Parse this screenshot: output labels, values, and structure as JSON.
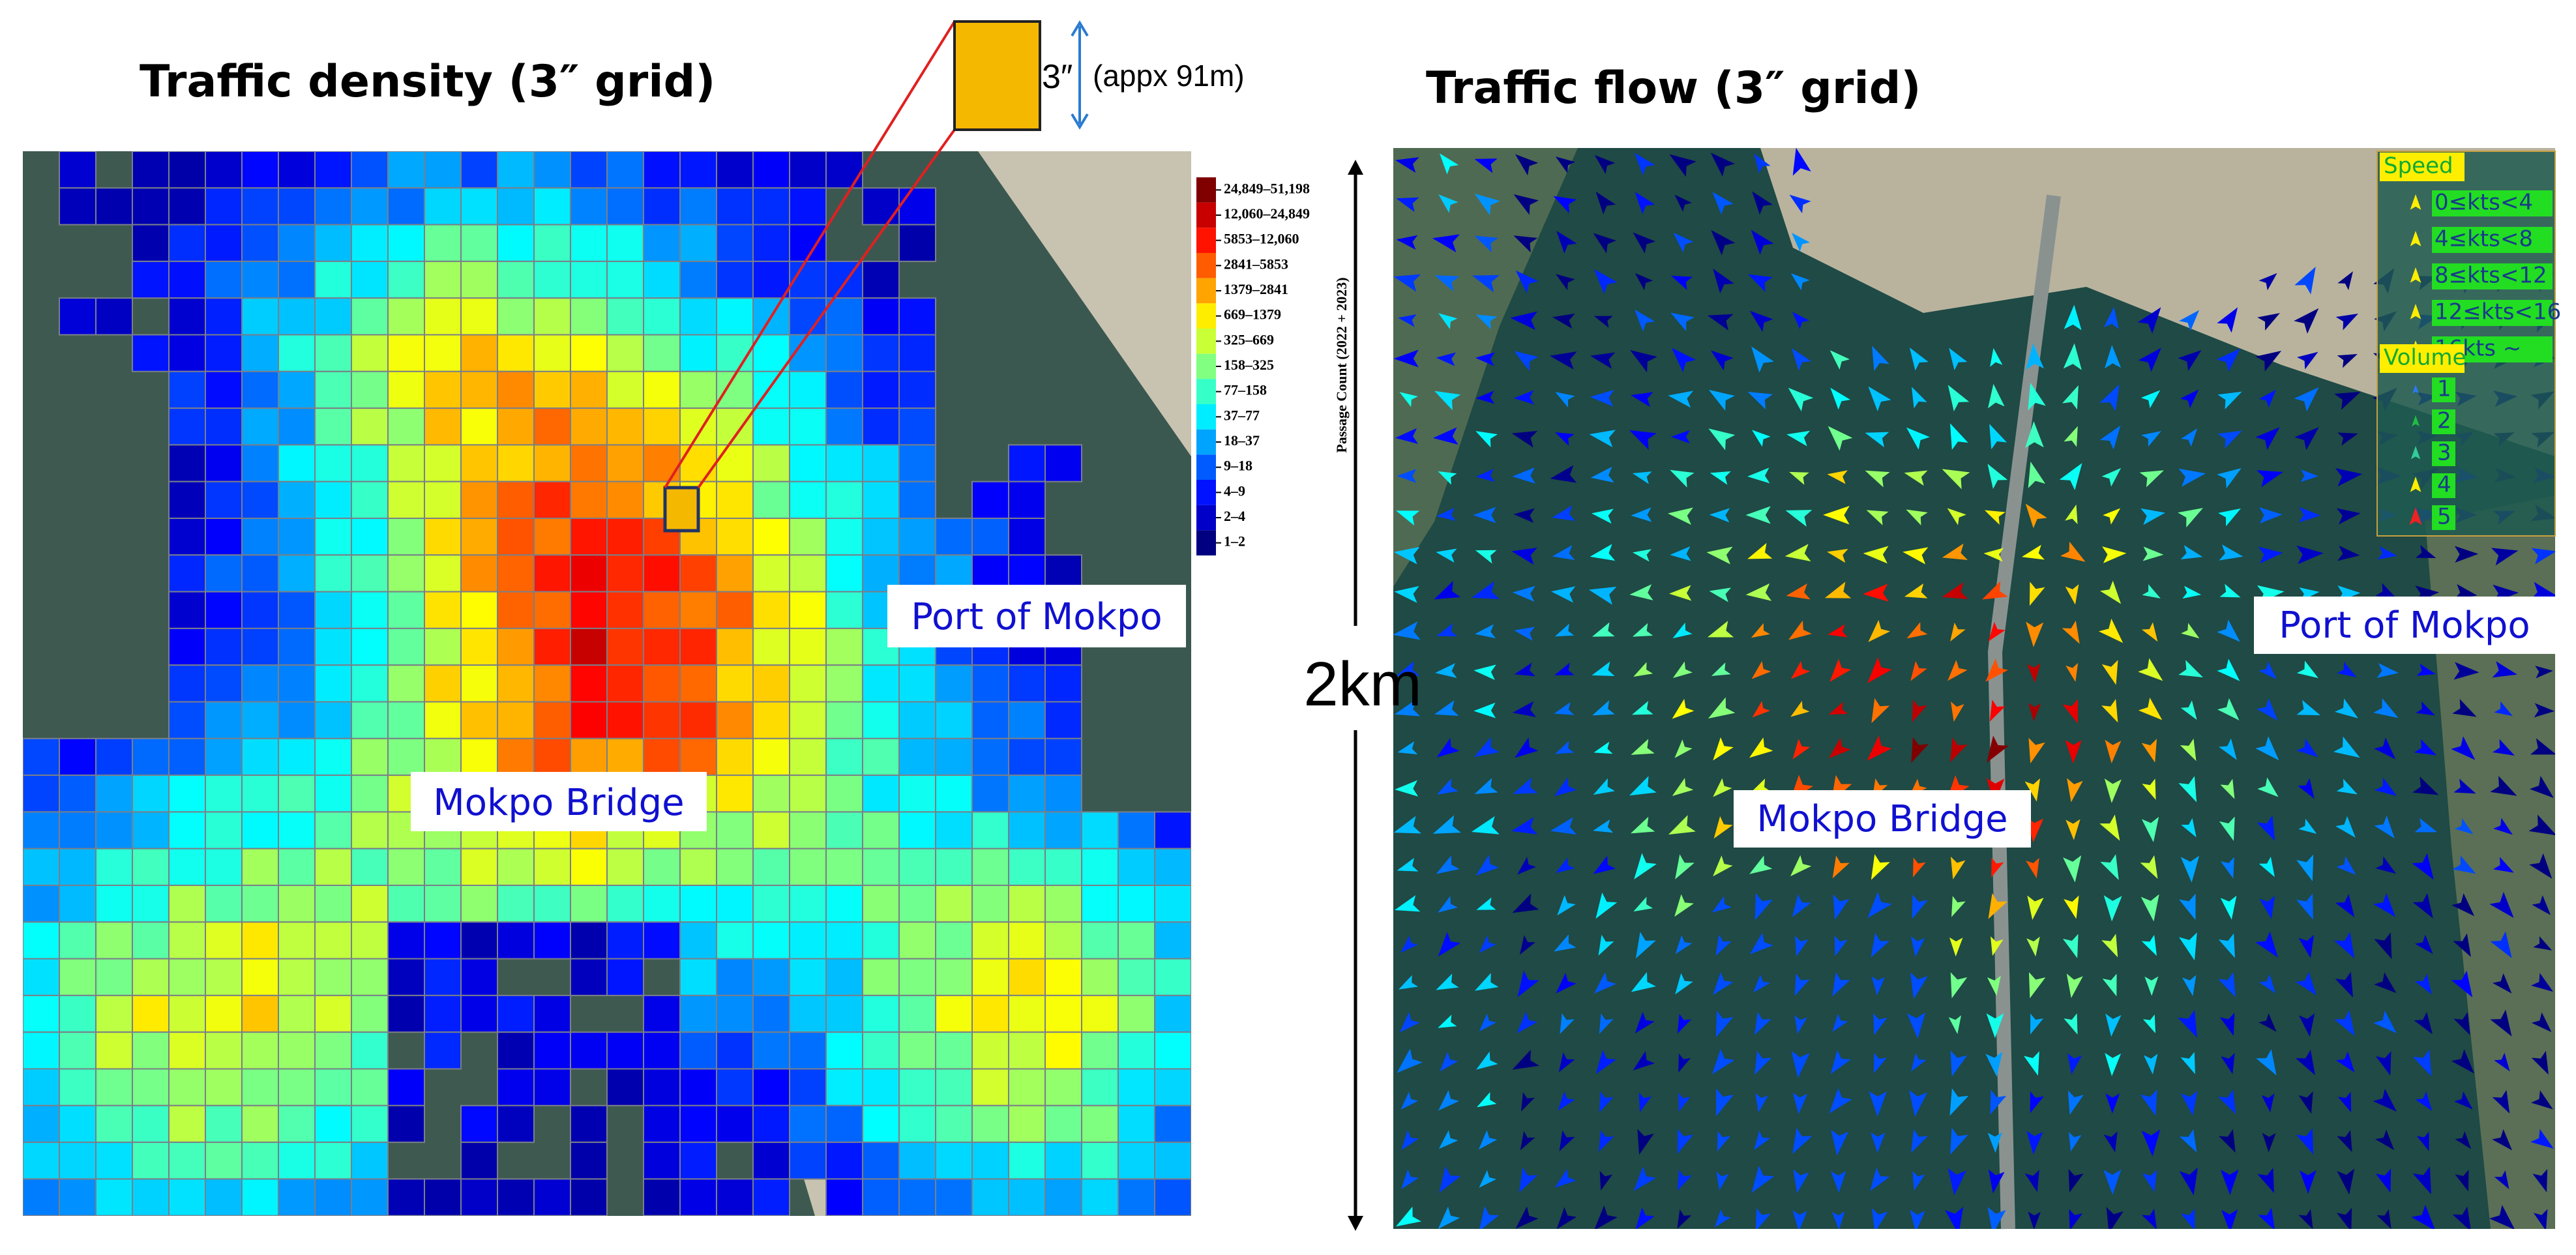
{
  "left_panel": {
    "title": "Traffic density (3″ grid)",
    "colorbar": {
      "label": "Passage Count (2022 + 2023)",
      "bins": [
        "24,849–51,198",
        "12,060–24,849",
        "5853–12,060",
        "2841–5853",
        "1379–2841",
        "669–1379",
        "325–669",
        "158–325",
        "77–158",
        "37–77",
        "18–37",
        "9–18",
        "4–9",
        "2–4",
        "1–2"
      ]
    },
    "port_label": "Port of Mokpo",
    "bridge_label": "Mokpo Bridge"
  },
  "inset": {
    "size_label": "3″",
    "size_note": "(appx 91m)"
  },
  "scale": {
    "label": "2km"
  },
  "right_panel": {
    "title": "Traffic flow (3″ grid)",
    "legend": {
      "speed_title": "Speed",
      "speeds": [
        "0≤kts<4",
        "4≤kts<8",
        "8≤kts<12",
        "12≤kts<16",
        "16kts ~"
      ],
      "volume_title": "Volume",
      "volumes": [
        "1",
        "2",
        "3",
        "4",
        "5"
      ]
    },
    "port_label": "Port of Mokpo",
    "bridge_label": "Mokpo Bridge"
  }
}
